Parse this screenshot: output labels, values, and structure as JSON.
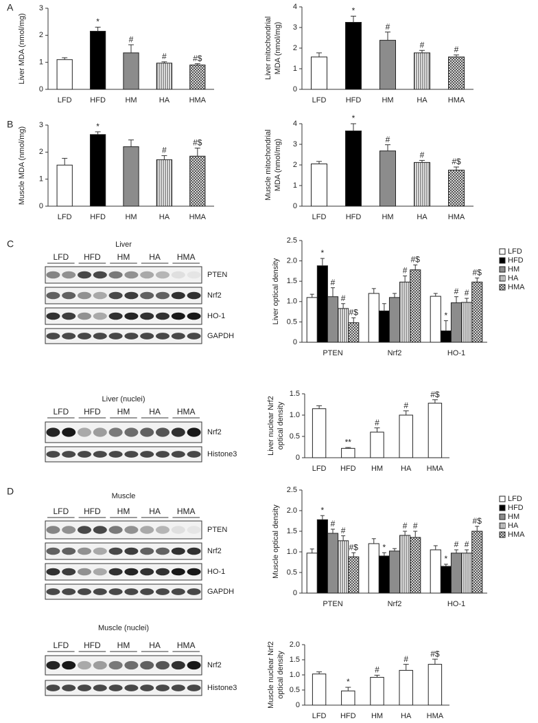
{
  "panels": [
    "A",
    "B",
    "C",
    "D"
  ],
  "blots": [
    {
      "title": "Liver",
      "groups": [
        "LFD",
        "HFD",
        "HM",
        "HA",
        "HMA"
      ],
      "rows": [
        "PTEN",
        "Nrf2",
        "HO-1",
        "GAPDH"
      ]
    },
    {
      "title": "Liver (nuclei)",
      "groups": [
        "LFD",
        "HFD",
        "HM",
        "HA",
        "HMA"
      ],
      "rows": [
        "Nrf2",
        "Histone3"
      ]
    },
    {
      "title": "Muscle",
      "groups": [
        "LFD",
        "HFD",
        "HM",
        "HA",
        "HMA"
      ],
      "rows": [
        "PTEN",
        "Nrf2",
        "HO-1",
        "GAPDH"
      ]
    },
    {
      "title": "Muscle (nuclei)",
      "groups": [
        "LFD",
        "HFD",
        "HM",
        "HA",
        "HMA"
      ],
      "rows": [
        "Nrf2",
        "Histone3"
      ]
    }
  ],
  "chart_data": [
    {
      "type": "bar",
      "ylabel": "Liver MDA (nmol/mg)",
      "categories": [
        "LFD",
        "HFD",
        "HM",
        "HA",
        "HMA"
      ],
      "fills": [
        "white",
        "black",
        "gray",
        "stripes",
        "checks"
      ],
      "values": [
        1.1,
        2.15,
        1.35,
        0.97,
        0.9
      ],
      "errors": [
        0.07,
        0.15,
        0.3,
        0.05,
        0.05
      ],
      "annotations": [
        null,
        "*",
        "#",
        "#",
        "#$"
      ],
      "ylim": [
        0,
        3
      ],
      "yticks": [
        0,
        1,
        2,
        3
      ]
    },
    {
      "type": "bar",
      "ylabel": [
        "Liver mitochondrial",
        "MDA (nmol/mg)"
      ],
      "categories": [
        "LFD",
        "HFD",
        "HM",
        "HA",
        "HMA"
      ],
      "fills": [
        "white",
        "black",
        "gray",
        "stripes",
        "checks"
      ],
      "values": [
        1.57,
        3.25,
        2.38,
        1.77,
        1.57
      ],
      "errors": [
        0.2,
        0.3,
        0.4,
        0.12,
        0.1
      ],
      "annotations": [
        null,
        "*",
        "#",
        "#",
        "#"
      ],
      "ylim": [
        0,
        4
      ],
      "yticks": [
        0,
        1,
        2,
        3,
        4
      ]
    },
    {
      "type": "bar",
      "ylabel": "Muscle MDA (nmol/mg)",
      "categories": [
        "LFD",
        "HFD",
        "HM",
        "HA",
        "HMA"
      ],
      "fills": [
        "white",
        "black",
        "gray",
        "stripes",
        "checks"
      ],
      "values": [
        1.52,
        2.65,
        2.2,
        1.72,
        1.85
      ],
      "errors": [
        0.25,
        0.1,
        0.25,
        0.15,
        0.3
      ],
      "annotations": [
        null,
        "*",
        null,
        "#",
        "#$"
      ],
      "ylim": [
        0,
        3
      ],
      "yticks": [
        0,
        1,
        2,
        3
      ]
    },
    {
      "type": "bar",
      "ylabel": [
        "Muscle mitochondrial",
        "MDA (nmol/mg)"
      ],
      "categories": [
        "LFD",
        "HFD",
        "HM",
        "HA",
        "HMA"
      ],
      "fills": [
        "white",
        "black",
        "gray",
        "stripes",
        "checks"
      ],
      "values": [
        2.05,
        3.65,
        2.68,
        2.12,
        1.75
      ],
      "errors": [
        0.12,
        0.35,
        0.3,
        0.1,
        0.15
      ],
      "annotations": [
        null,
        "*",
        "#",
        "#",
        "#$"
      ],
      "ylim": [
        0,
        4
      ],
      "yticks": [
        0,
        1,
        2,
        3,
        4
      ]
    },
    {
      "type": "grouped_bar",
      "ylabel": "Liver optical density",
      "categories": [
        "PTEN",
        "Nrf2",
        "HO-1"
      ],
      "series": [
        {
          "name": "LFD",
          "fill": "white",
          "values": [
            1.1,
            1.2,
            1.13
          ],
          "errors": [
            0.08,
            0.12,
            0.07
          ],
          "annotations": [
            null,
            null,
            null
          ]
        },
        {
          "name": "HFD",
          "fill": "black",
          "values": [
            1.88,
            0.77,
            0.28
          ],
          "errors": [
            0.18,
            0.18,
            0.25
          ],
          "annotations": [
            "*",
            null,
            "*"
          ]
        },
        {
          "name": "HM",
          "fill": "gray",
          "values": [
            1.12,
            1.1,
            0.97
          ],
          "errors": [
            0.22,
            0.1,
            0.15
          ],
          "annotations": [
            "#",
            null,
            "#"
          ]
        },
        {
          "name": "HA",
          "fill": "stripes",
          "values": [
            0.83,
            1.48,
            0.98
          ],
          "errors": [
            0.12,
            0.15,
            0.1
          ],
          "annotations": [
            "#",
            "#",
            "#"
          ]
        },
        {
          "name": "HMA",
          "fill": "checks",
          "values": [
            0.48,
            1.78,
            1.48
          ],
          "errors": [
            0.12,
            0.12,
            0.1
          ],
          "annotations": [
            "#$",
            "#$",
            "#$"
          ]
        }
      ],
      "ylim": [
        0,
        2.5
      ],
      "yticks": [
        0,
        0.5,
        {
          "value": 1,
          "label": "1.0"
        },
        1.5,
        {
          "value": 2,
          "label": "2.0"
        },
        2.5
      ],
      "legend": "right"
    },
    {
      "type": "bar",
      "ylabel": [
        "Liver nuclear Nrf2",
        "optical density"
      ],
      "categories": [
        "LFD",
        "HFD",
        "HM",
        "HA",
        "HMA"
      ],
      "fills": [
        "white",
        "white",
        "white",
        "white",
        "white"
      ],
      "values": [
        1.15,
        0.22,
        0.6,
        1.0,
        1.28
      ],
      "errors": [
        0.07,
        0.02,
        0.1,
        0.1,
        0.08
      ],
      "annotations": [
        null,
        "**",
        "#",
        "#",
        "#$"
      ],
      "ylim": [
        0,
        1.5
      ],
      "yticks": [
        0,
        0.5,
        {
          "value": 1,
          "label": "1.0"
        },
        1.5
      ]
    },
    {
      "type": "grouped_bar",
      "ylabel": "Muscle optical density",
      "categories": [
        "PTEN",
        "Nrf2",
        "HO-1"
      ],
      "series": [
        {
          "name": "LFD",
          "fill": "white",
          "values": [
            0.97,
            1.2,
            1.05
          ],
          "errors": [
            0.1,
            0.12,
            0.1
          ],
          "annotations": [
            null,
            null,
            null
          ]
        },
        {
          "name": "HFD",
          "fill": "black",
          "values": [
            1.78,
            0.9,
            0.65
          ],
          "errors": [
            0.1,
            0.08,
            0.05
          ],
          "annotations": [
            "*",
            "*",
            "*"
          ]
        },
        {
          "name": "HM",
          "fill": "gray",
          "values": [
            1.45,
            1.02,
            0.97
          ],
          "errors": [
            0.1,
            0.06,
            0.08
          ],
          "annotations": [
            "#",
            null,
            "#"
          ]
        },
        {
          "name": "HA",
          "fill": "stripes",
          "values": [
            1.27,
            1.4,
            0.97
          ],
          "errors": [
            0.12,
            0.1,
            0.08
          ],
          "annotations": [
            "#",
            "#",
            "#"
          ]
        },
        {
          "name": "HMA",
          "fill": "checks",
          "values": [
            0.88,
            1.35,
            1.5
          ],
          "errors": [
            0.1,
            0.15,
            0.12
          ],
          "annotations": [
            "#$",
            "#",
            "#$"
          ]
        }
      ],
      "ylim": [
        0,
        2.5
      ],
      "yticks": [
        0,
        0.5,
        {
          "value": 1,
          "label": "1.0"
        },
        1.5,
        {
          "value": 2,
          "label": "2.0"
        },
        2.5
      ],
      "legend": "right"
    },
    {
      "type": "bar",
      "ylabel": [
        "Muscle nuclear Nrf2",
        "optical density"
      ],
      "categories": [
        "LFD",
        "HFD",
        "HM",
        "HA",
        "HMA"
      ],
      "fills": [
        "white",
        "white",
        "white",
        "white",
        "white"
      ],
      "values": [
        1.03,
        0.47,
        0.92,
        1.15,
        1.35
      ],
      "errors": [
        0.07,
        0.12,
        0.07,
        0.2,
        0.17
      ],
      "annotations": [
        null,
        "*",
        "#",
        "#",
        "#$"
      ],
      "ylim": [
        0,
        2
      ],
      "yticks": [
        0,
        0.5,
        {
          "value": 1,
          "label": "1.0"
        },
        1.5,
        {
          "value": 2,
          "label": "2.0"
        }
      ]
    }
  ]
}
